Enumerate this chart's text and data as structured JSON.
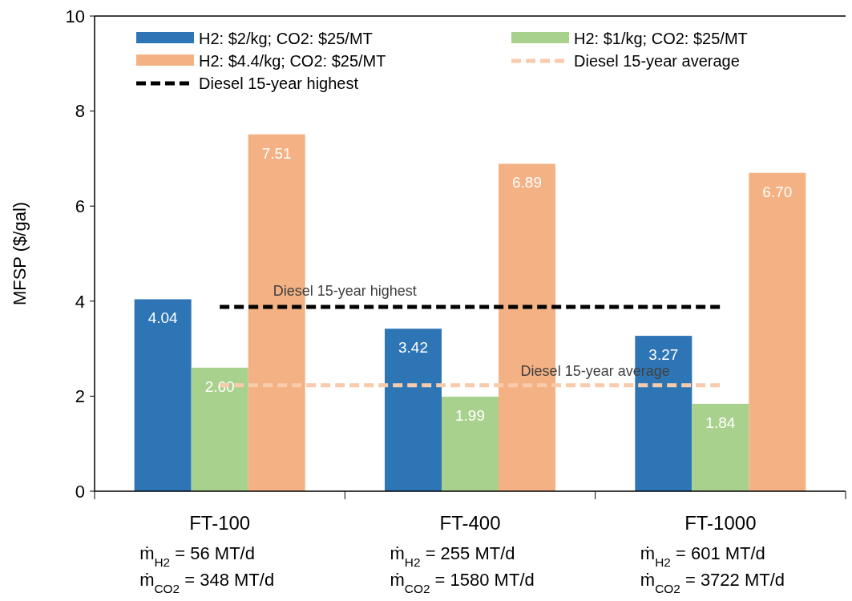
{
  "chart_data": {
    "type": "bar",
    "ylabel": "MFSP ($/gal)",
    "categories": [
      "FT-100\nṁ$_{H2}$ = 56 MT/d\nṁ$_{CO2}$ = 348 MT/d",
      "FT-400\nṁ$_{H2}$ = 255 MT/d\nṁ$_{CO2}$ = 1580 MT/d",
      "FT-1000\nṁ$_{H2}$ = 601 MT/d\nṁ$_{CO2}$ = 3722 MT/d"
    ],
    "series": [
      {
        "name": "H2: $2/kg; CO2: $25/MT",
        "color": "#2e75b6",
        "values": [
          4.04,
          3.42,
          3.27
        ],
        "value_labels": [
          "4.04",
          "3.42",
          "3.27"
        ]
      },
      {
        "name": "H2: $1/kg; CO2: $25/MT",
        "color": "#a9d18e",
        "values": [
          2.6,
          1.99,
          1.84
        ],
        "value_labels": [
          "2.60",
          "1.99",
          "1.84"
        ]
      },
      {
        "name": "H2: $4.4/kg; CO2: $25/MT",
        "color": "#f4b183",
        "values": [
          7.51,
          6.89,
          6.7
        ],
        "value_labels": [
          "7.51",
          "6.89",
          "6.70"
        ]
      },
      {
        "name": "Diesel 15-year average",
        "type": "line",
        "line_style": "dashed",
        "color": "#f8cbad",
        "values": [
          2.23,
          2.23,
          2.23
        ]
      },
      {
        "name": "Diesel 15-year highest",
        "type": "line",
        "line_style": "dashed",
        "color": "#000000",
        "values": [
          3.88,
          3.88,
          3.88
        ]
      }
    ],
    "ylim": [
      0,
      10
    ],
    "yticks": [
      0,
      2,
      4,
      6,
      8,
      10
    ],
    "legend": "top",
    "annotations": [
      "Diesel 15-year highest",
      "Diesel 15-year average"
    ]
  }
}
